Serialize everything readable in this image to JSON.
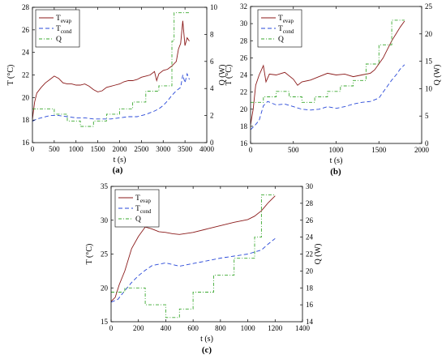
{
  "chart_data": [
    {
      "id": "a",
      "type": "line",
      "panel_label": "(a)",
      "xlabel": "t (s)",
      "ylabel_left": "T (°C)",
      "ylabel_right": "Q (W)",
      "xlim": [
        0,
        4000
      ],
      "ylim_left": [
        16,
        28
      ],
      "ylim_right": [
        0,
        10
      ],
      "xticks": [
        0,
        500,
        1000,
        1500,
        2000,
        2500,
        3000,
        3500,
        4000
      ],
      "yticks_left": [
        16,
        18,
        20,
        22,
        24,
        26,
        28
      ],
      "yticks_right": [
        0,
        2,
        4,
        6,
        8,
        10
      ],
      "grid": false,
      "legend_position": "top-left",
      "legend": [
        {
          "key": "evap",
          "main": "T",
          "sub": "evap"
        },
        {
          "key": "cond",
          "main": "T",
          "sub": "cond"
        },
        {
          "key": "Q",
          "main": "Q",
          "sub": ""
        }
      ],
      "series": [
        {
          "key": "evap",
          "axis": "left",
          "x": [
            0,
            50,
            100,
            200,
            300,
            400,
            500,
            600,
            700,
            800,
            900,
            1000,
            1100,
            1200,
            1300,
            1400,
            1500,
            1600,
            1700,
            1800,
            1900,
            2000,
            2100,
            2200,
            2300,
            2400,
            2500,
            2600,
            2700,
            2800,
            2850,
            2900,
            3000,
            3100,
            3200,
            3300,
            3350,
            3400,
            3450,
            3500,
            3550,
            3600
          ],
          "y": [
            18.1,
            19.6,
            20.4,
            20.9,
            21.3,
            21.6,
            21.9,
            21.7,
            21.3,
            21.2,
            21.2,
            21.1,
            21.1,
            21.2,
            21.0,
            20.7,
            20.5,
            20.6,
            20.9,
            21.0,
            21.1,
            21.2,
            21.4,
            21.5,
            21.5,
            21.6,
            21.8,
            21.9,
            22.0,
            22.3,
            21.5,
            22.1,
            22.4,
            22.5,
            22.8,
            23.2,
            24.3,
            24.8,
            26.8,
            24.6,
            25.3,
            25.0
          ]
        },
        {
          "key": "cond",
          "axis": "left",
          "x": [
            0,
            100,
            200,
            400,
            600,
            800,
            1000,
            1200,
            1400,
            1600,
            1800,
            2000,
            2200,
            2400,
            2600,
            2800,
            2900,
            3000,
            3100,
            3200,
            3300,
            3400,
            3450,
            3500,
            3550,
            3600
          ],
          "y": [
            17.9,
            18.1,
            18.2,
            18.4,
            18.4,
            18.3,
            18.2,
            18.2,
            18.1,
            18.1,
            18.1,
            18.2,
            18.3,
            18.3,
            18.5,
            18.8,
            19.0,
            19.3,
            19.7,
            20.2,
            20.6,
            20.9,
            22.0,
            21.3,
            22.1,
            21.6
          ]
        },
        {
          "key": "Q",
          "axis": "right",
          "x": [
            0,
            500,
            500,
            800,
            800,
            1100,
            1100,
            1400,
            1400,
            1700,
            1700,
            2000,
            2000,
            2300,
            2300,
            2600,
            2600,
            2900,
            2900,
            3200,
            3200,
            3250,
            3250,
            3600
          ],
          "y": [
            2.5,
            2.5,
            2.1,
            2.1,
            1.6,
            1.6,
            1.2,
            1.2,
            1.6,
            1.6,
            2.1,
            2.1,
            2.5,
            2.5,
            3.0,
            3.0,
            3.8,
            3.8,
            4.2,
            4.2,
            7.5,
            7.5,
            9.6,
            9.6
          ]
        }
      ]
    },
    {
      "id": "b",
      "type": "line",
      "panel_label": "(b)",
      "xlabel": "t (s)",
      "ylabel_left": "T (°C)",
      "ylabel_right": "Q (W)",
      "xlim": [
        0,
        2000
      ],
      "ylim_left": [
        16,
        32
      ],
      "ylim_right": [
        0,
        25
      ],
      "xticks": [
        0,
        500,
        1000,
        1500,
        2000
      ],
      "yticks_left": [
        16,
        18,
        20,
        22,
        24,
        26,
        28,
        30,
        32
      ],
      "yticks_right": [
        0,
        5,
        10,
        15,
        20,
        25
      ],
      "grid": false,
      "legend_position": "top-right",
      "legend": [
        {
          "key": "evap",
          "main": "T",
          "sub": "evap"
        },
        {
          "key": "cond",
          "main": "T",
          "sub": "cond"
        },
        {
          "key": "Q",
          "main": "Q",
          "sub": ""
        }
      ],
      "series": [
        {
          "key": "evap",
          "axis": "left",
          "x": [
            0,
            30,
            60,
            100,
            150,
            180,
            220,
            300,
            400,
            500,
            550,
            600,
            700,
            800,
            900,
            1000,
            1100,
            1200,
            1300,
            1400,
            1450,
            1500,
            1550,
            1600,
            1650,
            1700,
            1750,
            1800
          ],
          "y": [
            18.2,
            20.0,
            22.8,
            24.0,
            25.1,
            23.2,
            24.1,
            24.0,
            24.3,
            23.5,
            22.8,
            23.2,
            23.4,
            23.8,
            24.2,
            24.0,
            24.1,
            23.8,
            24.0,
            24.2,
            24.6,
            25.3,
            26.0,
            27.0,
            28.0,
            28.8,
            29.6,
            30.3
          ]
        },
        {
          "key": "cond",
          "axis": "left",
          "x": [
            0,
            50,
            100,
            150,
            200,
            300,
            400,
            500,
            600,
            700,
            800,
            900,
            1000,
            1100,
            1200,
            1300,
            1400,
            1500,
            1550,
            1600,
            1650,
            1700,
            1750,
            1800
          ],
          "y": [
            17.6,
            18.1,
            18.7,
            20.4,
            20.9,
            20.5,
            20.6,
            20.3,
            20.0,
            19.9,
            20.0,
            20.3,
            20.1,
            20.3,
            20.6,
            20.8,
            20.9,
            21.3,
            22.0,
            22.7,
            23.4,
            24.0,
            24.7,
            25.2
          ]
        },
        {
          "key": "Q",
          "axis": "right",
          "x": [
            0,
            150,
            150,
            300,
            300,
            450,
            450,
            600,
            600,
            750,
            750,
            900,
            900,
            1050,
            1050,
            1200,
            1200,
            1350,
            1350,
            1500,
            1500,
            1650,
            1650,
            1800
          ],
          "y": [
            7.5,
            7.5,
            8.5,
            8.5,
            9.5,
            9.5,
            8.5,
            8.5,
            7.5,
            7.5,
            8.5,
            8.5,
            9.5,
            9.5,
            10.5,
            10.5,
            11.5,
            11.5,
            14.5,
            14.5,
            18.0,
            18.0,
            22.5,
            22.5
          ]
        }
      ]
    },
    {
      "id": "c",
      "type": "line",
      "panel_label": "(c)",
      "xlabel": "t (s)",
      "ylabel_left": "T (°C)",
      "ylabel_right": "Q (W)",
      "xlim": [
        0,
        1400
      ],
      "ylim_left": [
        15,
        35
      ],
      "ylim_right": [
        14,
        30
      ],
      "xticks": [
        0,
        200,
        400,
        600,
        800,
        1000,
        1200,
        1400
      ],
      "yticks_left": [
        15,
        20,
        25,
        30,
        35
      ],
      "yticks_right": [
        14,
        16,
        18,
        20,
        22,
        24,
        26,
        28,
        30
      ],
      "grid": false,
      "legend_position": "top-left",
      "legend": [
        {
          "key": "evap",
          "main": "T",
          "sub": "evap"
        },
        {
          "key": "cond",
          "main": "T",
          "sub": "cond"
        },
        {
          "key": "Q",
          "main": "Q",
          "sub": ""
        }
      ],
      "series": [
        {
          "key": "evap",
          "axis": "left",
          "x": [
            0,
            30,
            60,
            100,
            150,
            200,
            250,
            300,
            350,
            400,
            450,
            500,
            600,
            700,
            800,
            900,
            1000,
            1050,
            1100,
            1150,
            1200
          ],
          "y": [
            18.0,
            18.6,
            20.5,
            22.5,
            25.8,
            27.6,
            29.0,
            28.7,
            28.3,
            28.2,
            28.0,
            27.9,
            28.2,
            28.7,
            29.2,
            29.7,
            30.1,
            30.6,
            31.4,
            32.6,
            33.6
          ]
        },
        {
          "key": "cond",
          "axis": "left",
          "x": [
            0,
            50,
            100,
            150,
            200,
            250,
            300,
            400,
            500,
            600,
            700,
            800,
            900,
            1000,
            1100,
            1150,
            1200
          ],
          "y": [
            17.9,
            18.3,
            19.6,
            20.8,
            21.8,
            22.6,
            23.3,
            23.7,
            23.2,
            23.6,
            24.0,
            24.4,
            24.7,
            25.0,
            25.6,
            26.5,
            27.3
          ]
        },
        {
          "key": "Q",
          "axis": "right",
          "x": [
            0,
            100,
            100,
            250,
            250,
            400,
            400,
            500,
            500,
            600,
            600,
            750,
            750,
            900,
            900,
            1050,
            1050,
            1100,
            1100,
            1200
          ],
          "y": [
            17.5,
            17.5,
            18.0,
            18.0,
            16.0,
            16.0,
            14.5,
            14.5,
            15.5,
            15.5,
            17.5,
            17.5,
            19.5,
            19.5,
            21.5,
            21.5,
            24.0,
            24.0,
            29.0,
            29.0
          ]
        }
      ]
    }
  ],
  "colors": {
    "evap": "#8b1a1a",
    "cond": "#2747d8",
    "Q": "#3aa82f"
  },
  "dashes": {
    "evap": "",
    "cond": "5,3",
    "Q": "4,2,1,2"
  }
}
